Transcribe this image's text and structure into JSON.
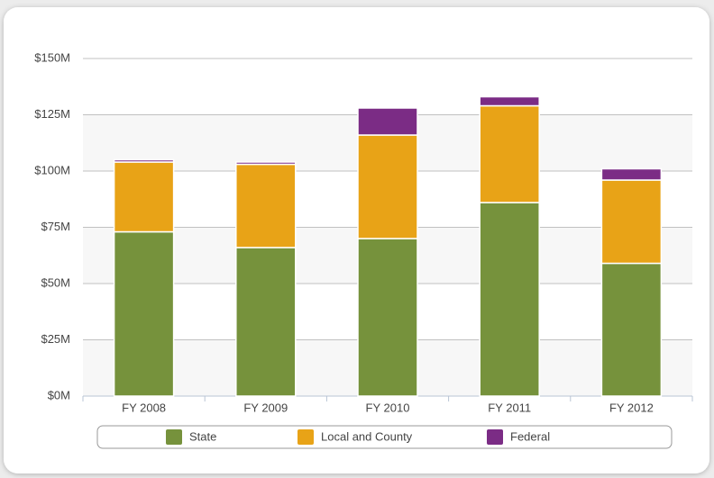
{
  "chart_data": {
    "type": "stacked-bar",
    "categories": [
      "FY 2008",
      "FY 2009",
      "FY 2010",
      "FY 2011",
      "FY 2012"
    ],
    "series": [
      {
        "name": "State",
        "color": "#76923c",
        "values": [
          73,
          66,
          70,
          86,
          59
        ]
      },
      {
        "name": "Local and County",
        "color": "#e8a317",
        "values": [
          31,
          37,
          46,
          43,
          37
        ]
      },
      {
        "name": "Federal",
        "color": "#7b2c85",
        "values": [
          1,
          1,
          12,
          4,
          5
        ]
      }
    ],
    "ylim": [
      0,
      150
    ],
    "yticks": [
      {
        "value": 0,
        "label": "$0M"
      },
      {
        "value": 25,
        "label": "$25M"
      },
      {
        "value": 50,
        "label": "$50M"
      },
      {
        "value": 75,
        "label": "$75M"
      },
      {
        "value": 100,
        "label": "$100M"
      },
      {
        "value": 125,
        "label": "$125M"
      },
      {
        "value": 150,
        "label": "$150M"
      }
    ],
    "grid": true,
    "legend": "bottom"
  }
}
